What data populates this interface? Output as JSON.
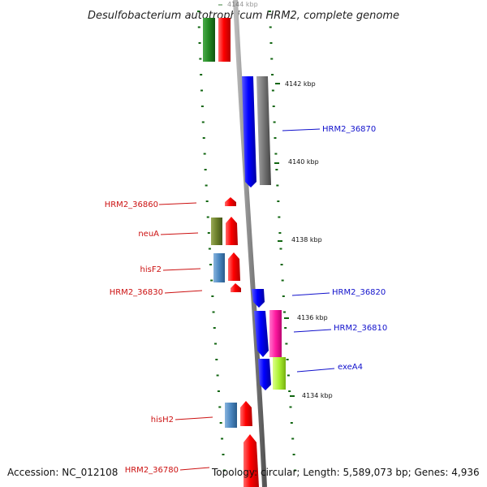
{
  "title": "Desulfobacterium autotrophicum HRM2, complete genome",
  "top_tick_label": "4144 kbp",
  "ticks": [
    {
      "label": "4142 kbp"
    },
    {
      "label": "4140 kbp"
    },
    {
      "label": "4138 kbp"
    },
    {
      "label": "4136 kbp"
    },
    {
      "label": "4134 kbp"
    }
  ],
  "gene_labels_left": [
    {
      "text": "HRM2_36860",
      "color": "#cc1111"
    },
    {
      "text": "neuA",
      "color": "#cc1111"
    },
    {
      "text": "hisF2",
      "color": "#cc1111"
    },
    {
      "text": "HRM2_36830",
      "color": "#cc1111"
    },
    {
      "text": "hisH2",
      "color": "#cc1111"
    },
    {
      "text": "HRM2_36780",
      "color": "#cc1111"
    }
  ],
  "gene_labels_right": [
    {
      "text": "HRM2_36870",
      "color": "#1111cc"
    },
    {
      "text": "HRM2_36820",
      "color": "#1111cc"
    },
    {
      "text": "HRM2_36810",
      "color": "#1111cc"
    },
    {
      "text": "exeA4",
      "color": "#1111cc"
    }
  ],
  "colors": {
    "forward_strand": "#ee0000",
    "reverse_strand": "#0000ee",
    "backbone": "#888888",
    "tick": "#116611"
  },
  "footer": {
    "accession": "Accession: NC_012108",
    "topology": "Topology: circular; Length: 5,589,073 bp; Genes: 4,936"
  }
}
